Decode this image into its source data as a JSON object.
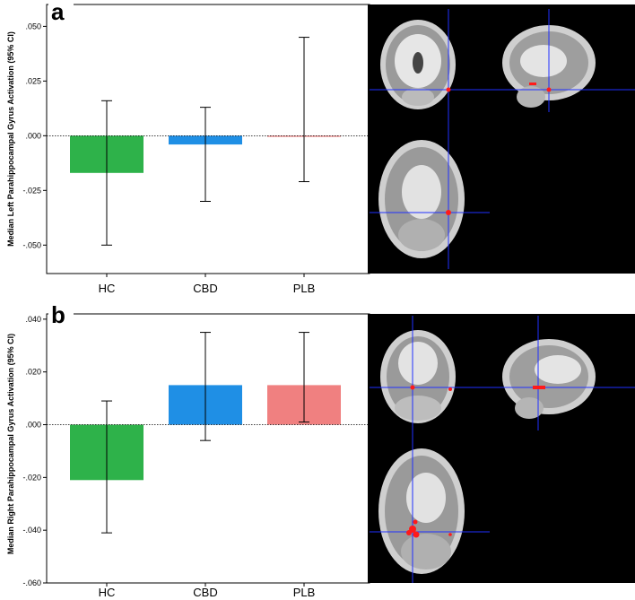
{
  "panels": [
    {
      "letter": "a",
      "ylabel": "Median Left Parahippocampal Gyrus Activation (95% CI)",
      "ylim": [
        -0.063,
        0.06
      ],
      "yticks": [
        ".050",
        ".025",
        ".000",
        "-.025",
        "-.050"
      ],
      "ytick_values": [
        0.05,
        0.025,
        0.0,
        -0.025,
        -0.05
      ],
      "colors": [
        "#2eb24a",
        "#1f8fe5",
        "#f08080"
      ],
      "brain_views": [
        "coronal",
        "sagittal",
        "axial"
      ]
    },
    {
      "letter": "b",
      "ylabel": "Median Right Parahippocampal Gyrus Activation (95% CI)",
      "ylim": [
        -0.06,
        0.042
      ],
      "yticks": [
        ".040",
        ".020",
        ".000",
        "-.020",
        "-.040",
        "-.060"
      ],
      "ytick_values": [
        0.04,
        0.02,
        0.0,
        -0.02,
        -0.04,
        -0.06
      ],
      "colors": [
        "#2eb24a",
        "#1f8fe5",
        "#f08080"
      ],
      "brain_views": [
        "coronal",
        "sagittal",
        "axial"
      ]
    }
  ],
  "chart_data": [
    {
      "type": "bar",
      "title": "",
      "xlabel": "",
      "ylabel": "Median Left Parahippocampal Gyrus Activation (95% CI)",
      "categories": [
        "HC",
        "CBD",
        "PLB"
      ],
      "values": [
        -0.017,
        -0.004,
        -0.0005
      ],
      "error_low": [
        -0.05,
        -0.03,
        -0.021
      ],
      "error_high": [
        0.016,
        0.013,
        0.045
      ],
      "ylim": [
        -0.063,
        0.06
      ],
      "grid": false,
      "reference_line": 0.0
    },
    {
      "type": "bar",
      "title": "",
      "xlabel": "",
      "ylabel": "Median Right Parahippocampal Gyrus Activation (95% CI)",
      "categories": [
        "HC",
        "CBD",
        "PLB"
      ],
      "values": [
        -0.021,
        0.015,
        0.015
      ],
      "error_low": [
        -0.041,
        -0.006,
        0.001
      ],
      "error_high": [
        0.009,
        0.035,
        0.035
      ],
      "ylim": [
        -0.06,
        0.042
      ],
      "grid": false,
      "reference_line": 0.0
    }
  ]
}
